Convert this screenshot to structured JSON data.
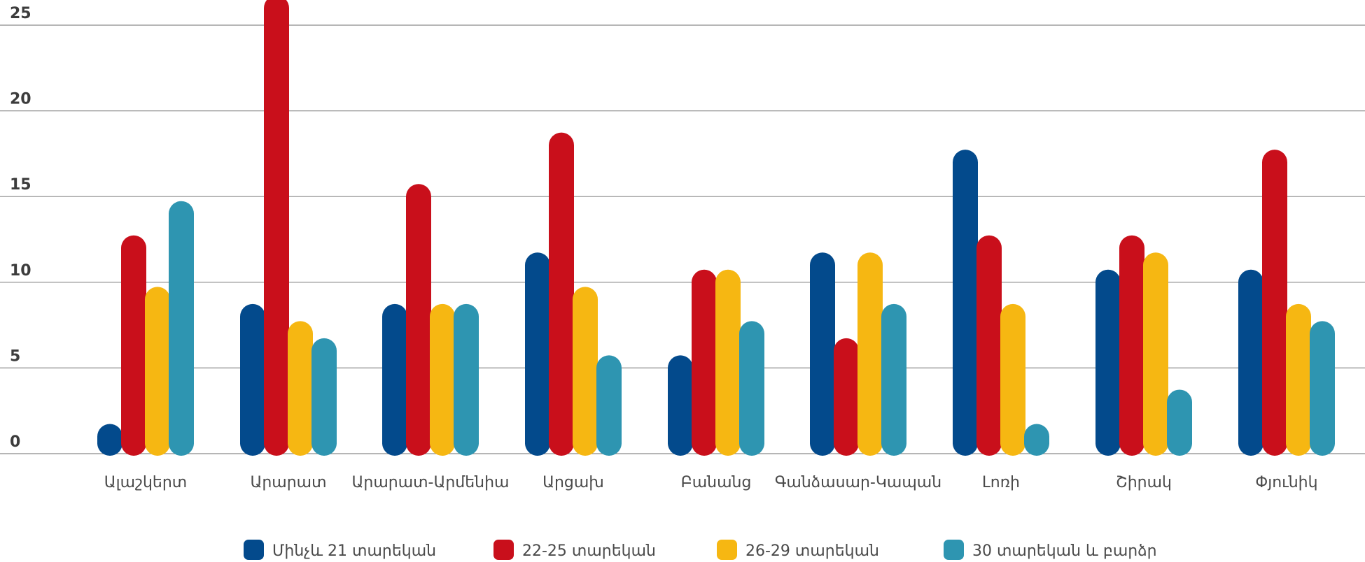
{
  "chart_data": {
    "type": "bar",
    "categories": [
      "Ալաշկերտ",
      "Արարատ",
      "Արարատ-Արմենիա",
      "Արցախ",
      "Բանանց",
      "Գանձասար-Կապան",
      "Լոռի",
      "Շիրակ",
      "Փյունիկ"
    ],
    "series": [
      {
        "name": "Մինչև 21 տարեկան",
        "color": "#034a8c",
        "values": [
          1,
          8,
          8,
          11,
          5,
          11,
          17,
          10,
          10
        ]
      },
      {
        "name": "22-25 տարեկան",
        "color": "#c90f1b",
        "values": [
          12,
          26,
          15,
          18,
          10,
          6,
          12,
          12,
          17
        ]
      },
      {
        "name": "26-29 տարեկան",
        "color": "#f6b712",
        "values": [
          9,
          7,
          8,
          9,
          10,
          11,
          8,
          11,
          8
        ]
      },
      {
        "name": "30 տարեկան և բարձր",
        "color": "#2e95b1",
        "values": [
          14,
          6,
          8,
          5,
          7,
          8,
          1,
          3,
          7
        ]
      }
    ],
    "yticks": [
      0,
      5,
      10,
      15,
      20,
      25
    ],
    "ylim": [
      0,
      25
    ],
    "grid": true,
    "legend_position": "bottom"
  }
}
